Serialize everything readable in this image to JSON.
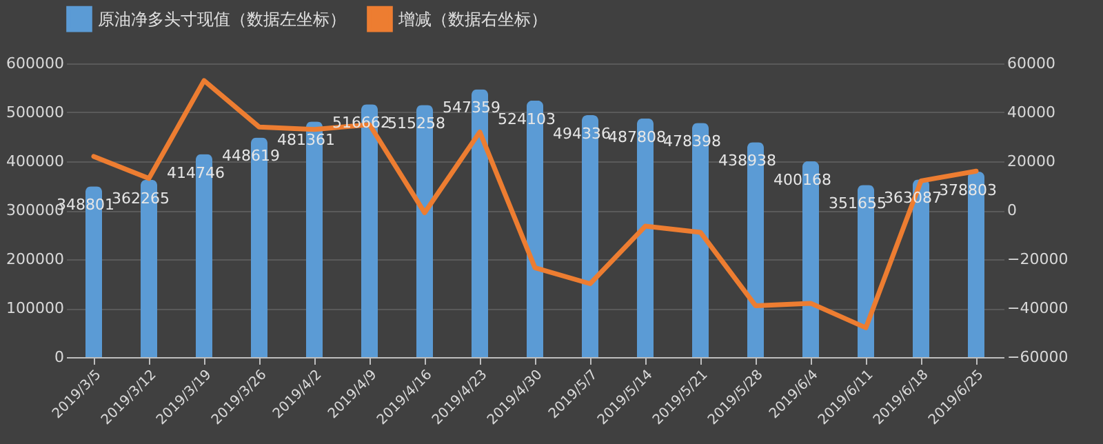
{
  "chart_data": {
    "type": "bar",
    "categories": [
      "2019/3/5",
      "2019/3/12",
      "2019/3/19",
      "2019/3/26",
      "2019/4/2",
      "2019/4/9",
      "2019/4/16",
      "2019/4/23",
      "2019/4/30",
      "2019/5/7",
      "2019/5/14",
      "2019/5/21",
      "2019/5/28",
      "2019/6/4",
      "2019/6/11",
      "2019/6/18",
      "2019/6/25"
    ],
    "series": [
      {
        "name": "原油净多头寸现值（数据左坐标）",
        "color": "#5b9bd5",
        "data_labels": true,
        "values": [
          348801,
          362265,
          414746,
          448619,
          481361,
          516662,
          515258,
          547359,
          524103,
          494336,
          487808,
          478398,
          438938,
          400168,
          351655,
          363087,
          378803
        ]
      },
      {
        "name": "增减（数据右坐标）",
        "type": "line",
        "axis": "y2",
        "color": "#ed7d31",
        "values": [
          22000,
          13000,
          53000,
          34000,
          33000,
          35000,
          -1000,
          32000,
          -23500,
          -30000,
          -6500,
          -9000,
          -39000,
          -38000,
          -48000,
          12000,
          16000
        ]
      }
    ],
    "ylim": [
      0,
      600000
    ],
    "yticks": [
      0,
      100000,
      200000,
      300000,
      400000,
      500000,
      600000
    ],
    "y2lim": [
      -60000,
      60000
    ],
    "y2ticks": [
      -60000,
      -40000,
      -20000,
      0,
      20000,
      40000,
      60000
    ],
    "grid": "y",
    "legend": "top"
  }
}
